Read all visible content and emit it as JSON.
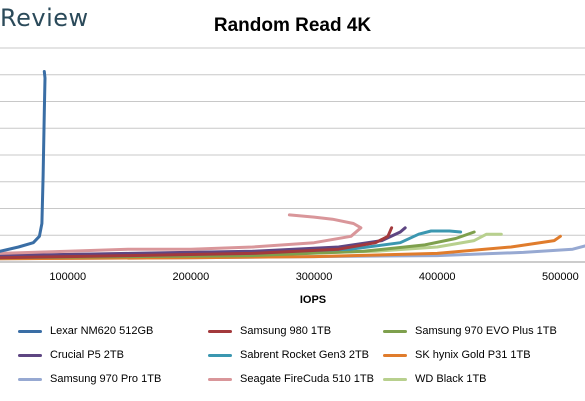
{
  "header": {
    "brand": "Review"
  },
  "chart_data": {
    "type": "line",
    "title": "Random Read 4K",
    "xlabel": "IOPS",
    "ylabel": "",
    "xlim": [
      45000,
      520000
    ],
    "ylim": [
      0,
      1
    ],
    "x_ticks": [
      100000,
      200000,
      300000,
      400000,
      500000
    ],
    "x_tick_labels": [
      "100000",
      "200000",
      "300000",
      "400000",
      "500000"
    ],
    "gridlines": "horizontal",
    "legend_position": "bottom",
    "series": [
      {
        "name": "Lexar NM620 512GB",
        "color": "#3a6ea5",
        "points": [
          [
            45000,
            0.05
          ],
          [
            60000,
            0.07
          ],
          [
            72000,
            0.09
          ],
          [
            77000,
            0.12
          ],
          [
            79000,
            0.18
          ],
          [
            80000,
            0.4
          ],
          [
            81000,
            0.7
          ],
          [
            81500,
            0.86
          ],
          [
            81000,
            0.89
          ]
        ]
      },
      {
        "name": "Samsung 980 1TB",
        "color": "#a3393c",
        "points": [
          [
            45000,
            0.02
          ],
          [
            150000,
            0.03
          ],
          [
            250000,
            0.04
          ],
          [
            320000,
            0.06
          ],
          [
            350000,
            0.09
          ],
          [
            360000,
            0.12
          ],
          [
            363000,
            0.16
          ]
        ]
      },
      {
        "name": "Samsung 970 EVO Plus 1TB",
        "color": "#7ea04d",
        "points": [
          [
            45000,
            0.02
          ],
          [
            150000,
            0.025
          ],
          [
            250000,
            0.03
          ],
          [
            340000,
            0.05
          ],
          [
            390000,
            0.08
          ],
          [
            415000,
            0.11
          ],
          [
            430000,
            0.14
          ]
        ]
      },
      {
        "name": "Crucial P5 2TB",
        "color": "#5e4682",
        "points": [
          [
            45000,
            0.03
          ],
          [
            150000,
            0.04
          ],
          [
            250000,
            0.05
          ],
          [
            320000,
            0.07
          ],
          [
            355000,
            0.1
          ],
          [
            370000,
            0.14
          ],
          [
            374000,
            0.16
          ]
        ]
      },
      {
        "name": "Sabrent Rocket Gen3 2TB",
        "color": "#3b97b0",
        "points": [
          [
            45000,
            0.03
          ],
          [
            150000,
            0.035
          ],
          [
            250000,
            0.045
          ],
          [
            330000,
            0.06
          ],
          [
            370000,
            0.09
          ],
          [
            385000,
            0.13
          ],
          [
            395000,
            0.145
          ],
          [
            410000,
            0.145
          ],
          [
            419000,
            0.14
          ]
        ]
      },
      {
        "name": "SK hynix Gold P31 1TB",
        "color": "#e07c2c",
        "points": [
          [
            45000,
            0.015
          ],
          [
            200000,
            0.02
          ],
          [
            300000,
            0.025
          ],
          [
            400000,
            0.04
          ],
          [
            460000,
            0.07
          ],
          [
            495000,
            0.1
          ],
          [
            500000,
            0.12
          ]
        ]
      },
      {
        "name": "Samsung 970 Pro 1TB",
        "color": "#97a9d2",
        "points": [
          [
            45000,
            0.015
          ],
          [
            200000,
            0.02
          ],
          [
            300000,
            0.025
          ],
          [
            400000,
            0.03
          ],
          [
            470000,
            0.045
          ],
          [
            510000,
            0.06
          ],
          [
            520000,
            0.075
          ]
        ]
      },
      {
        "name": "Seagate FireCuda 510 1TB",
        "color": "#d9969a",
        "points": [
          [
            45000,
            0.04
          ],
          [
            100000,
            0.05
          ],
          [
            150000,
            0.06
          ],
          [
            200000,
            0.06
          ],
          [
            250000,
            0.07
          ],
          [
            300000,
            0.09
          ],
          [
            330000,
            0.12
          ],
          [
            338000,
            0.16
          ],
          [
            332000,
            0.18
          ],
          [
            315000,
            0.2
          ],
          [
            300000,
            0.21
          ],
          [
            280000,
            0.22
          ]
        ]
      },
      {
        "name": "WD Black 1TB",
        "color": "#b8d08e",
        "points": [
          [
            45000,
            0.02
          ],
          [
            150000,
            0.03
          ],
          [
            250000,
            0.035
          ],
          [
            350000,
            0.05
          ],
          [
            400000,
            0.07
          ],
          [
            430000,
            0.1
          ],
          [
            440000,
            0.13
          ],
          [
            450000,
            0.13
          ],
          [
            452000,
            0.13
          ]
        ]
      }
    ]
  }
}
